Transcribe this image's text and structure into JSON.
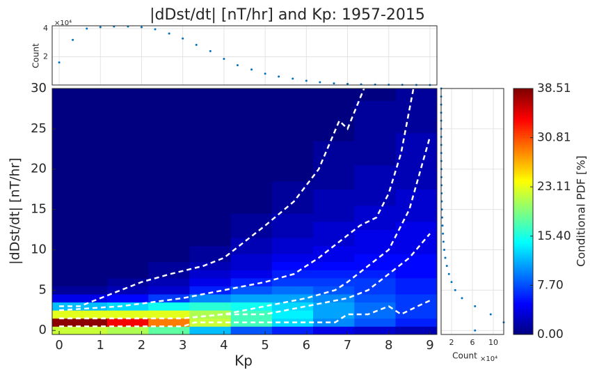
{
  "chart_data": [
    {
      "type": "heatmap",
      "title": "|dDst/dt| [nT/hr] and Kp: 1957-2015",
      "x_label": "Kp",
      "y_label": "|dDst/dt| [nT/hr]",
      "x": [
        0,
        0.33,
        0.67,
        1,
        1.33,
        1.67,
        2,
        2.33,
        2.67,
        3,
        3.33,
        3.67,
        4,
        4.33,
        4.67,
        5,
        5.33,
        5.67,
        6,
        6.33,
        6.67,
        7,
        7.33,
        7.67,
        8,
        8.33,
        8.67,
        9
      ],
      "y": [
        0,
        1,
        2,
        3,
        4,
        5,
        6,
        7,
        8,
        9,
        10,
        11,
        12,
        13,
        14,
        15,
        16,
        17,
        18,
        19,
        20,
        21,
        22,
        23,
        24,
        25,
        26,
        27,
        28,
        29,
        30
      ],
      "z": [
        [
          22,
          38,
          23,
          12,
          4,
          1,
          0,
          0,
          0,
          0,
          0,
          0,
          0,
          0,
          0,
          0,
          0,
          0,
          0,
          0,
          0,
          0,
          0,
          0,
          0,
          0,
          0,
          0,
          0,
          0,
          0
        ],
        [
          22,
          38,
          23,
          12,
          4,
          1,
          0,
          0,
          0,
          0,
          0,
          0,
          0,
          0,
          0,
          0,
          0,
          0,
          0,
          0,
          0,
          0,
          0,
          0,
          0,
          0,
          0,
          0,
          0,
          0,
          0
        ],
        [
          22,
          38,
          23,
          12,
          4,
          1,
          0,
          0,
          0,
          0,
          0,
          0,
          0,
          0,
          0,
          0,
          0,
          0,
          0,
          0,
          0,
          0,
          0,
          0,
          0,
          0,
          0,
          0,
          0,
          0,
          0
        ],
        [
          22,
          38,
          23,
          12,
          4,
          1,
          0,
          0,
          0,
          0,
          0,
          0,
          0,
          0,
          0,
          0,
          0,
          0,
          0,
          0,
          0,
          0,
          0,
          0,
          0,
          0,
          0,
          0,
          0,
          0,
          0
        ],
        [
          21,
          34,
          23,
          13,
          5,
          2,
          1,
          0,
          0,
          0,
          0,
          0,
          0,
          0,
          0,
          0,
          0,
          0,
          0,
          0,
          0,
          0,
          0,
          0,
          0,
          0,
          0,
          0,
          0,
          0,
          0
        ],
        [
          21,
          34,
          23,
          13,
          5,
          2,
          1,
          0,
          0,
          0,
          0,
          0,
          0,
          0,
          0,
          0,
          0,
          0,
          0,
          0,
          0,
          0,
          0,
          0,
          0,
          0,
          0,
          0,
          0,
          0,
          0
        ],
        [
          21,
          34,
          23,
          13,
          5,
          2,
          1,
          0,
          0,
          0,
          0,
          0,
          0,
          0,
          0,
          0,
          0,
          0,
          0,
          0,
          0,
          0,
          0,
          0,
          0,
          0,
          0,
          0,
          0,
          0,
          0
        ],
        [
          18,
          29,
          23,
          15,
          7,
          3,
          2,
          1,
          1,
          0,
          0,
          0,
          0,
          0,
          0,
          0,
          0,
          0,
          0,
          0,
          0,
          0,
          0,
          0,
          0,
          0,
          0,
          0,
          0,
          0,
          0
        ],
        [
          18,
          29,
          23,
          15,
          7,
          3,
          2,
          1,
          1,
          0,
          0,
          0,
          0,
          0,
          0,
          0,
          0,
          0,
          0,
          0,
          0,
          0,
          0,
          0,
          0,
          0,
          0,
          0,
          0,
          0,
          0
        ],
        [
          18,
          29,
          23,
          15,
          7,
          3,
          2,
          1,
          1,
          0,
          0,
          0,
          0,
          0,
          0,
          0,
          0,
          0,
          0,
          0,
          0,
          0,
          0,
          0,
          0,
          0,
          0,
          0,
          0,
          0,
          0
        ],
        [
          12,
          22,
          21,
          16,
          10,
          6,
          4,
          3,
          2,
          1,
          1,
          0,
          0,
          0,
          0,
          0,
          0,
          0,
          0,
          0,
          0,
          0,
          0,
          0,
          0,
          0,
          0,
          0,
          0,
          0,
          0
        ],
        [
          12,
          22,
          21,
          16,
          10,
          6,
          4,
          3,
          2,
          1,
          1,
          0,
          0,
          0,
          0,
          0,
          0,
          0,
          0,
          0,
          0,
          0,
          0,
          0,
          0,
          0,
          0,
          0,
          0,
          0,
          0
        ],
        [
          12,
          22,
          21,
          16,
          10,
          6,
          4,
          3,
          2,
          1,
          1,
          0,
          0,
          0,
          0,
          0,
          0,
          0,
          0,
          0,
          0,
          0,
          0,
          0,
          0,
          0,
          0,
          0,
          0,
          0,
          0
        ],
        [
          8,
          17,
          17,
          15,
          11,
          8,
          6,
          4,
          3,
          3,
          2,
          2,
          1,
          1,
          1,
          0,
          0,
          0,
          0,
          0,
          0,
          0,
          0,
          0,
          0,
          0,
          0,
          0,
          0,
          0,
          0
        ],
        [
          8,
          17,
          17,
          15,
          11,
          8,
          6,
          4,
          3,
          3,
          2,
          2,
          1,
          1,
          1,
          0,
          0,
          0,
          0,
          0,
          0,
          0,
          0,
          0,
          0,
          0,
          0,
          0,
          0,
          0,
          0
        ],
        [
          8,
          17,
          17,
          15,
          11,
          8,
          6,
          4,
          3,
          3,
          2,
          2,
          1,
          1,
          1,
          0,
          0,
          0,
          0,
          0,
          0,
          0,
          0,
          0,
          0,
          0,
          0,
          0,
          0,
          0,
          0
        ],
        [
          6,
          13,
          14,
          13,
          11,
          9,
          7,
          6,
          5,
          4,
          3,
          3,
          2,
          2,
          2,
          1,
          1,
          1,
          1,
          0,
          0,
          0,
          0,
          0,
          0,
          0,
          0,
          0,
          0,
          0,
          0
        ],
        [
          6,
          13,
          14,
          13,
          11,
          9,
          7,
          6,
          5,
          4,
          3,
          3,
          2,
          2,
          2,
          1,
          1,
          1,
          1,
          0,
          0,
          0,
          0,
          0,
          0,
          0,
          0,
          0,
          0,
          0,
          0
        ],
        [
          6,
          13,
          14,
          13,
          11,
          9,
          7,
          6,
          5,
          4,
          3,
          3,
          2,
          2,
          2,
          1,
          1,
          1,
          1,
          0,
          0,
          0,
          0,
          0,
          0,
          0,
          0,
          0,
          0,
          0,
          0
        ],
        [
          4,
          10,
          11,
          11,
          10,
          8,
          7,
          6,
          5,
          4,
          4,
          3,
          3,
          3,
          2,
          2,
          2,
          2,
          1,
          1,
          1,
          1,
          1,
          1,
          0,
          0,
          0,
          0,
          0,
          0,
          0
        ],
        [
          4,
          10,
          11,
          11,
          10,
          8,
          7,
          6,
          5,
          4,
          4,
          3,
          3,
          3,
          2,
          2,
          2,
          2,
          1,
          1,
          1,
          1,
          1,
          1,
          0,
          0,
          0,
          0,
          0,
          0,
          0
        ],
        [
          4,
          10,
          11,
          11,
          10,
          8,
          7,
          6,
          5,
          4,
          4,
          3,
          3,
          3,
          2,
          2,
          2,
          2,
          1,
          1,
          1,
          1,
          1,
          1,
          0,
          0,
          0,
          0,
          0,
          0,
          0
        ],
        [
          3,
          8,
          9,
          9,
          8,
          7,
          7,
          6,
          5,
          5,
          4,
          4,
          4,
          3,
          3,
          3,
          2,
          2,
          2,
          2,
          2,
          1,
          1,
          1,
          1,
          1,
          1,
          1,
          1,
          0,
          0
        ],
        [
          3,
          8,
          9,
          9,
          8,
          7,
          7,
          6,
          5,
          5,
          4,
          4,
          4,
          3,
          3,
          3,
          2,
          2,
          2,
          2,
          2,
          1,
          1,
          1,
          1,
          1,
          1,
          1,
          1,
          0,
          0
        ],
        [
          3,
          8,
          9,
          9,
          8,
          7,
          7,
          6,
          5,
          5,
          4,
          4,
          4,
          3,
          3,
          3,
          2,
          2,
          2,
          2,
          2,
          1,
          1,
          1,
          1,
          1,
          1,
          1,
          1,
          0,
          0
        ],
        [
          2,
          6,
          7,
          7,
          7,
          6,
          6,
          5,
          5,
          5,
          4,
          4,
          4,
          4,
          3,
          3,
          3,
          3,
          2,
          2,
          2,
          2,
          2,
          2,
          2,
          1,
          1,
          1,
          1,
          1,
          1
        ],
        [
          2,
          6,
          7,
          7,
          7,
          6,
          6,
          5,
          5,
          5,
          4,
          4,
          4,
          4,
          3,
          3,
          3,
          3,
          2,
          2,
          2,
          2,
          2,
          2,
          2,
          1,
          1,
          1,
          1,
          1,
          1
        ],
        [
          2,
          6,
          7,
          7,
          7,
          6,
          6,
          5,
          5,
          5,
          4,
          4,
          4,
          4,
          3,
          3,
          3,
          3,
          2,
          2,
          2,
          2,
          2,
          2,
          2,
          1,
          1,
          1,
          1,
          1,
          1
        ]
      ],
      "xlim": [
        -0.17,
        9.17
      ],
      "ylim": [
        -0.5,
        30
      ],
      "xticks": [
        0,
        1,
        2,
        3,
        4,
        5,
        6,
        7,
        8,
        9
      ],
      "yticks": [
        0,
        5,
        10,
        15,
        20,
        25,
        30
      ],
      "colormap": "jet",
      "zlim": [
        0,
        38.51
      ],
      "colorbar_label": "Conditional PDF [%]",
      "colorbar_ticks": [
        {
          "value": 0,
          "label": "0.00"
        },
        {
          "value": 7.7,
          "label": "7.70"
        },
        {
          "value": 15.4,
          "label": "15.40"
        },
        {
          "value": 23.11,
          "label": "23.11"
        },
        {
          "value": 30.81,
          "label": "30.81"
        },
        {
          "value": 38.51,
          "label": "38.51"
        }
      ],
      "contour_color": "#ffffff",
      "contours": [
        {
          "x": [
            0,
            0.5,
            1,
            1.5,
            2,
            2.7,
            3.5,
            4,
            4.5,
            5,
            5.7,
            6.3,
            6.8,
            7,
            7.4
          ],
          "y": [
            3,
            3,
            4,
            5,
            6,
            7,
            8,
            9,
            11,
            13,
            16,
            20,
            26,
            25,
            30
          ]
        },
        {
          "x": [
            0,
            1.5,
            3,
            4,
            5,
            5.7,
            6.3,
            6.8,
            7.3,
            7.7,
            8,
            8.3,
            8.6
          ],
          "y": [
            2.5,
            3,
            4,
            5,
            6,
            7,
            9,
            11,
            13,
            14,
            17,
            22,
            30
          ]
        },
        {
          "x": [
            0,
            3,
            4,
            5,
            6,
            6.7,
            7,
            7.5,
            8,
            8.5,
            9
          ],
          "y": [
            1.5,
            1.5,
            2,
            3,
            4,
            5,
            6,
            8,
            10,
            15,
            24
          ]
        },
        {
          "x": [
            0,
            3,
            4,
            5,
            6,
            7,
            7.5,
            8,
            8.5,
            9
          ],
          "y": [
            1.5,
            1.5,
            2,
            2,
            3,
            4,
            5,
            7,
            9,
            12
          ]
        },
        {
          "x": [
            0,
            3,
            3.3,
            6.7,
            7,
            7.5,
            8,
            8.3,
            8.7,
            9
          ],
          "y": [
            0.5,
            0.5,
            1,
            1,
            2,
            2,
            3,
            2,
            3,
            3.7
          ]
        }
      ]
    },
    {
      "type": "scatter",
      "y_label": "Count",
      "scale_label": "×10⁴",
      "color": "#0072bd",
      "grid": true,
      "x": [
        0,
        0.33,
        0.67,
        1,
        1.33,
        1.67,
        2,
        2.33,
        2.67,
        3,
        3.33,
        3.67,
        4,
        4.33,
        4.67,
        5,
        5.33,
        5.67,
        6,
        6.33,
        6.67,
        7,
        7.33,
        7.67,
        8,
        8.33,
        8.67,
        9
      ],
      "values": [
        1.6,
        3.2,
        4.0,
        4.1,
        4.15,
        4.15,
        4.1,
        3.95,
        3.65,
        3.3,
        2.85,
        2.4,
        1.85,
        1.4,
        1.1,
        0.8,
        0.6,
        0.45,
        0.3,
        0.2,
        0.12,
        0.08,
        0.05,
        0.03,
        0.02,
        0.01,
        0.005,
        0.002
      ],
      "xlim": [
        -0.17,
        9.17
      ],
      "ylim": [
        0,
        4.2
      ],
      "yticks": [
        2,
        4
      ]
    },
    {
      "type": "scatter",
      "orientation": "horizontal",
      "x_label": "Count",
      "scale_label": "×10⁴",
      "color": "#0072bd",
      "grid": true,
      "y": [
        0,
        1,
        2,
        3,
        4,
        5,
        6,
        7,
        8,
        9,
        10,
        11,
        12,
        13,
        14,
        15,
        16,
        17,
        18,
        19,
        20,
        21,
        22,
        23,
        24,
        25,
        26,
        27,
        28,
        29,
        30
      ],
      "values": [
        6.5,
        12,
        9.5,
        6.5,
        4,
        2.7,
        2,
        1.5,
        1.1,
        0.8,
        0.6,
        0.45,
        0.35,
        0.27,
        0.2,
        0.15,
        0.12,
        0.1,
        0.08,
        0.06,
        0.05,
        0.04,
        0.03,
        0.03,
        0.02,
        0.02,
        0.015,
        0.01,
        0.01,
        0.01,
        0.01
      ],
      "xlim": [
        0,
        12
      ],
      "ylim": [
        -0.5,
        30
      ],
      "xticks": [
        2,
        6,
        10
      ]
    }
  ]
}
